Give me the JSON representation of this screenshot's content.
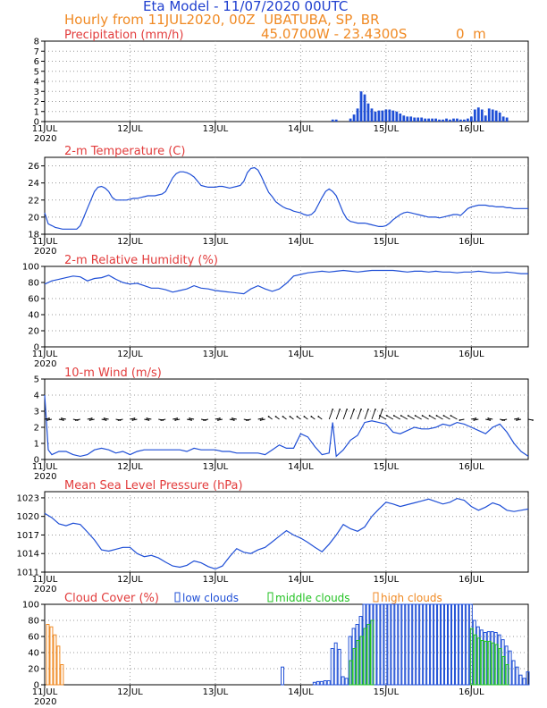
{
  "header": {
    "title": "Eta Model - 11/07/2020 00UTC",
    "subtitle": "Hourly from 11JUL2020, 00Z  UBATUBA, SP, BR",
    "coords": "45.0700W - 23.4300S",
    "elevation": "0  m"
  },
  "colors": {
    "title": "#1f3fcf",
    "header_orange": "#f08a24",
    "panel_title": "#e23b3b",
    "series": "#1f4fd6",
    "wind_arrows": "#000000",
    "low_clouds": "#1f4fd6",
    "middle_clouds": "#22c222",
    "high_clouds": "#f08a24"
  },
  "chart_data": [
    {
      "type": "bar",
      "title": "Precipitation (mm/h)",
      "ylim": [
        0,
        8
      ],
      "yticks": [
        0,
        1,
        2,
        3,
        4,
        5,
        6,
        7,
        8
      ],
      "xticks": [
        "11JUL",
        "12JUL",
        "13JUL",
        "14JUL",
        "15JUL",
        "16JUL"
      ],
      "year_label": "2020",
      "x_unit": "hours since 11JUL2020 00Z",
      "x": [
        81,
        82,
        86,
        87,
        88,
        89,
        90,
        91,
        92,
        93,
        94,
        95,
        96,
        97,
        98,
        99,
        100,
        101,
        102,
        103,
        104,
        105,
        106,
        107,
        108,
        109,
        110,
        111,
        112,
        113,
        114,
        115,
        116,
        117,
        118,
        119,
        120,
        121,
        122,
        123,
        124,
        125,
        126,
        127,
        128,
        129,
        130
      ],
      "values": [
        0.2,
        0.2,
        0.3,
        0.7,
        1.3,
        3.0,
        2.7,
        1.8,
        1.3,
        1.0,
        1.1,
        1.1,
        1.2,
        1.2,
        1.1,
        1.0,
        0.8,
        0.6,
        0.5,
        0.5,
        0.4,
        0.4,
        0.4,
        0.3,
        0.3,
        0.3,
        0.3,
        0.2,
        0.2,
        0.3,
        0.2,
        0.3,
        0.3,
        0.2,
        0.2,
        0.3,
        0.5,
        1.2,
        1.4,
        1.2,
        0.6,
        1.3,
        1.2,
        1.1,
        0.9,
        0.5,
        0.4
      ]
    },
    {
      "type": "line",
      "title": "2-m Temperature (C)",
      "ylim": [
        18,
        27
      ],
      "yticks": [
        18,
        20,
        22,
        24,
        26
      ],
      "xticks": [
        "11JUL",
        "12JUL",
        "13JUL",
        "14JUL",
        "15JUL",
        "16JUL"
      ],
      "year_label": "2020",
      "x": [
        0,
        1,
        2,
        3,
        4,
        5,
        6,
        7,
        8,
        9,
        10,
        11,
        12,
        13,
        14,
        15,
        16,
        17,
        18,
        19,
        20,
        21,
        22,
        23,
        24,
        25,
        26,
        27,
        28,
        29,
        30,
        31,
        32,
        33,
        34,
        35,
        36,
        37,
        38,
        39,
        40,
        41,
        42,
        43,
        44,
        45,
        46,
        47,
        48,
        49,
        50,
        51,
        52,
        53,
        54,
        55,
        56,
        57,
        58,
        59,
        60,
        61,
        62,
        63,
        64,
        65,
        66,
        67,
        68,
        69,
        70,
        71,
        72,
        73,
        74,
        75,
        76,
        77,
        78,
        79,
        80,
        81,
        82,
        83,
        84,
        85,
        86,
        87,
        88,
        89,
        90,
        91,
        92,
        93,
        94,
        95,
        96,
        97,
        98,
        99,
        100,
        101,
        102,
        103,
        104,
        105,
        106,
        107,
        108,
        109,
        110,
        111,
        112,
        113,
        114,
        115,
        116,
        117,
        118,
        119,
        120,
        121,
        122,
        123,
        124,
        125,
        126,
        127,
        128,
        129,
        130,
        131,
        132,
        133,
        134,
        135,
        136
      ],
      "values": [
        20.5,
        19.2,
        19.0,
        18.8,
        18.7,
        18.6,
        18.6,
        18.6,
        18.6,
        18.6,
        19.0,
        20.0,
        21.0,
        22.0,
        23.0,
        23.5,
        23.6,
        23.4,
        23.0,
        22.3,
        22.0,
        22.0,
        22.0,
        22.0,
        22.1,
        22.2,
        22.2,
        22.3,
        22.4,
        22.5,
        22.5,
        22.5,
        22.6,
        22.7,
        23.0,
        23.8,
        24.6,
        25.1,
        25.3,
        25.3,
        25.2,
        25.0,
        24.7,
        24.2,
        23.7,
        23.6,
        23.5,
        23.5,
        23.5,
        23.6,
        23.6,
        23.5,
        23.4,
        23.5,
        23.6,
        23.7,
        24.2,
        25.2,
        25.7,
        25.8,
        25.5,
        24.7,
        23.8,
        22.9,
        22.4,
        21.8,
        21.5,
        21.2,
        21.0,
        20.9,
        20.7,
        20.6,
        20.5,
        20.3,
        20.2,
        20.3,
        20.7,
        21.5,
        22.3,
        23.0,
        23.3,
        23.0,
        22.5,
        21.5,
        20.5,
        19.8,
        19.5,
        19.4,
        19.3,
        19.3,
        19.3,
        19.2,
        19.1,
        19.0,
        18.9,
        18.9,
        19.0,
        19.3,
        19.7,
        20.0,
        20.3,
        20.5,
        20.6,
        20.5,
        20.4,
        20.3,
        20.2,
        20.1,
        20.0,
        20.0,
        20.0,
        19.9,
        20.0,
        20.1,
        20.2,
        20.3,
        20.3,
        20.2,
        20.6,
        21.0,
        21.2,
        21.3,
        21.4,
        21.4,
        21.4,
        21.3,
        21.3,
        21.2,
        21.2,
        21.2,
        21.1,
        21.1,
        21.0,
        21.0,
        21.0,
        21.0,
        21.0
      ]
    },
    {
      "type": "line",
      "title": "2-m Relative Humidity (%)",
      "ylim": [
        0,
        100
      ],
      "yticks": [
        0,
        20,
        40,
        60,
        80,
        100
      ],
      "xticks": [
        "11JUL",
        "12JUL",
        "13JUL",
        "14JUL",
        "15JUL",
        "16JUL"
      ],
      "year_label": "2020",
      "x": [
        0,
        2,
        4,
        6,
        8,
        10,
        12,
        14,
        16,
        18,
        20,
        22,
        24,
        26,
        28,
        30,
        32,
        34,
        36,
        38,
        40,
        42,
        44,
        46,
        48,
        50,
        52,
        54,
        56,
        58,
        60,
        62,
        64,
        66,
        68,
        70,
        72,
        74,
        76,
        78,
        80,
        82,
        84,
        86,
        88,
        90,
        92,
        94,
        96,
        98,
        100,
        102,
        104,
        106,
        108,
        110,
        112,
        114,
        116,
        118,
        120,
        122,
        124,
        126,
        128,
        130,
        132,
        134,
        136
      ],
      "values": [
        78,
        82,
        84,
        86,
        88,
        87,
        82,
        85,
        86,
        89,
        84,
        80,
        78,
        79,
        76,
        73,
        73,
        71,
        68,
        70,
        72,
        76,
        73,
        72,
        70,
        69,
        68,
        67,
        66,
        72,
        76,
        72,
        69,
        72,
        79,
        88,
        90,
        92,
        93,
        94,
        93,
        94,
        95,
        94,
        93,
        94,
        95,
        95,
        95,
        95,
        94,
        93,
        94,
        94,
        93,
        94,
        93,
        93,
        92,
        93,
        93,
        94,
        93,
        92,
        92,
        93,
        92,
        91,
        91
      ]
    },
    {
      "type": "line",
      "title": "10-m Wind (m/s)",
      "ylim": [
        0,
        5
      ],
      "yticks": [
        0,
        1,
        2,
        3,
        4,
        5
      ],
      "xticks": [
        "11JUL",
        "12JUL",
        "13JUL",
        "14JUL",
        "15JUL",
        "16JUL"
      ],
      "year_label": "2020",
      "x": [
        0,
        1,
        2,
        4,
        6,
        8,
        10,
        12,
        14,
        16,
        18,
        20,
        22,
        24,
        26,
        28,
        30,
        32,
        34,
        36,
        38,
        40,
        42,
        44,
        46,
        48,
        50,
        52,
        54,
        56,
        58,
        60,
        62,
        64,
        66,
        68,
        70,
        72,
        74,
        76,
        78,
        80,
        81,
        82,
        84,
        86,
        88,
        90,
        92,
        94,
        96,
        98,
        100,
        102,
        104,
        106,
        108,
        110,
        112,
        114,
        116,
        118,
        120,
        122,
        124,
        126,
        128,
        130,
        132,
        134,
        136
      ],
      "values": [
        4.0,
        0.6,
        0.3,
        0.5,
        0.5,
        0.3,
        0.2,
        0.3,
        0.6,
        0.7,
        0.6,
        0.4,
        0.5,
        0.3,
        0.5,
        0.6,
        0.6,
        0.6,
        0.6,
        0.6,
        0.6,
        0.5,
        0.7,
        0.6,
        0.6,
        0.6,
        0.5,
        0.5,
        0.4,
        0.4,
        0.4,
        0.4,
        0.3,
        0.6,
        0.9,
        0.7,
        0.7,
        1.6,
        1.4,
        0.8,
        0.3,
        0.4,
        2.3,
        0.2,
        0.6,
        1.2,
        1.5,
        2.3,
        2.4,
        2.3,
        2.2,
        1.7,
        1.6,
        1.8,
        2.0,
        1.9,
        1.9,
        2.0,
        2.2,
        2.1,
        2.3,
        2.2,
        2.0,
        1.8,
        1.6,
        2.0,
        2.2,
        1.7,
        1.0,
        0.5,
        0.2
      ],
      "arrows_note": "wind direction vectors along baseline 2.5 m/s"
    },
    {
      "type": "line",
      "title": "Mean Sea Level Pressure (hPa)",
      "ylim": [
        1011,
        1024
      ],
      "yticks": [
        1011,
        1014,
        1017,
        1020,
        1023
      ],
      "xticks": [
        "11JUL",
        "12JUL",
        "13JUL",
        "14JUL",
        "15JUL",
        "16JUL"
      ],
      "year_label": "2020",
      "x": [
        0,
        2,
        4,
        6,
        8,
        10,
        12,
        14,
        16,
        18,
        20,
        22,
        24,
        26,
        28,
        30,
        32,
        34,
        36,
        38,
        40,
        42,
        44,
        46,
        48,
        50,
        52,
        54,
        56,
        58,
        60,
        62,
        64,
        66,
        68,
        70,
        72,
        74,
        76,
        78,
        80,
        82,
        84,
        86,
        88,
        90,
        92,
        94,
        96,
        98,
        100,
        102,
        104,
        106,
        108,
        110,
        112,
        114,
        116,
        118,
        120,
        122,
        124,
        126,
        128,
        130,
        132,
        134,
        136
      ],
      "values": [
        1020.5,
        1019.8,
        1018.8,
        1018.5,
        1018.9,
        1018.7,
        1017.5,
        1016.2,
        1014.6,
        1014.4,
        1014.7,
        1015.0,
        1015.0,
        1014.0,
        1013.5,
        1013.7,
        1013.3,
        1012.6,
        1012.0,
        1011.8,
        1012.1,
        1012.8,
        1012.5,
        1011.9,
        1011.5,
        1012.0,
        1013.5,
        1014.8,
        1014.2,
        1014.0,
        1014.6,
        1015.0,
        1015.9,
        1016.8,
        1017.7,
        1017.0,
        1016.5,
        1015.8,
        1015.0,
        1014.3,
        1015.5,
        1017.0,
        1018.7,
        1018.0,
        1017.6,
        1018.3,
        1020.0,
        1021.2,
        1022.3,
        1022.0,
        1021.6,
        1021.9,
        1022.2,
        1022.5,
        1022.8,
        1022.4,
        1022.0,
        1022.3,
        1022.9,
        1022.6,
        1021.6,
        1021.0,
        1021.5,
        1022.2,
        1021.8,
        1021.0,
        1020.8,
        1021.0,
        1021.2
      ]
    },
    {
      "type": "bar",
      "title": "Cloud Cover (%)",
      "ylim": [
        0,
        100
      ],
      "yticks": [
        0,
        20,
        40,
        60,
        80,
        100
      ],
      "xticks": [
        "11JUL",
        "12JUL",
        "13JUL",
        "14JUL",
        "15JUL",
        "16JUL"
      ],
      "year_label": "2020",
      "legend": [
        "low clouds",
        "middle clouds",
        "high clouds"
      ],
      "series": [
        {
          "name": "high clouds",
          "x": [
            1,
            2,
            3,
            4,
            5
          ],
          "values": [
            75,
            72,
            62,
            48,
            25
          ]
        },
        {
          "name": "low clouds",
          "x": [
            67,
            76,
            77,
            78,
            79,
            80,
            81,
            82,
            83,
            84,
            85,
            86,
            87,
            88,
            89,
            90,
            91,
            92,
            93,
            94,
            95,
            96,
            97,
            98,
            99,
            100,
            101,
            102,
            103,
            104,
            105,
            106,
            107,
            108,
            109,
            110,
            111,
            112,
            113,
            114,
            115,
            116,
            117,
            118,
            119,
            120,
            121,
            122,
            123,
            124,
            125,
            126,
            127,
            128,
            129,
            130,
            131,
            132,
            133,
            134,
            135,
            136
          ],
          "values": [
            22,
            3,
            4,
            4,
            5,
            5,
            45,
            52,
            44,
            10,
            8,
            60,
            70,
            75,
            85,
            100,
            100,
            100,
            100,
            100,
            100,
            100,
            100,
            100,
            100,
            100,
            100,
            100,
            100,
            100,
            100,
            100,
            100,
            100,
            100,
            100,
            100,
            100,
            100,
            100,
            100,
            100,
            100,
            100,
            100,
            100,
            80,
            72,
            68,
            65,
            66,
            66,
            65,
            62,
            56,
            48,
            42,
            30,
            22,
            12,
            8,
            16
          ]
        },
        {
          "name": "middle clouds",
          "x": [
            86,
            87,
            88,
            89,
            90,
            91,
            92,
            120,
            121,
            122,
            123,
            124,
            125,
            126,
            127,
            128,
            129,
            130
          ],
          "values": [
            30,
            45,
            55,
            60,
            70,
            75,
            80,
            70,
            62,
            58,
            55,
            54,
            54,
            52,
            50,
            45,
            35,
            25
          ]
        }
      ]
    }
  ]
}
